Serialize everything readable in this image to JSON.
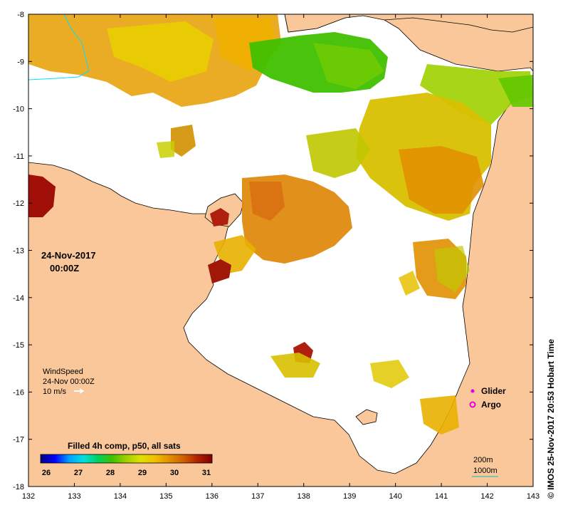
{
  "map": {
    "date_label": "24-Nov-2017",
    "time_label": "00:00Z",
    "lon_ticks": [
      "132",
      "133",
      "134",
      "135",
      "136",
      "137",
      "138",
      "139",
      "140",
      "141",
      "142",
      "143"
    ],
    "lat_ticks": [
      "-8",
      "-9",
      "-10",
      "-11",
      "-12",
      "-13",
      "-14",
      "-15",
      "-16",
      "-17",
      "-18"
    ],
    "wind": {
      "title": "WindSpeed",
      "time": "24-Nov 00:00Z",
      "scale": "10 m/s"
    },
    "legend": {
      "glider": "Glider",
      "argo": "Argo"
    },
    "colorbar": {
      "title": "Filled 4h comp, p50, all sats",
      "ticks": [
        "26",
        "27",
        "28",
        "29",
        "30",
        "31"
      ],
      "colors": [
        "#000080",
        "#0000ff",
        "#00a0ff",
        "#00e0e0",
        "#00d060",
        "#40c000",
        "#a0d000",
        "#e0e000",
        "#f0c000",
        "#e09000",
        "#d06000",
        "#b02000",
        "#800000"
      ]
    },
    "bathymetry": {
      "label_200": "200m",
      "label_1000": "1000m"
    },
    "credit": "© IMOS 25-Nov-2017 20:53 Hobart Time",
    "colors": {
      "land": "#f9c799",
      "ocean": "#ffffff",
      "coast": "#000000"
    }
  }
}
